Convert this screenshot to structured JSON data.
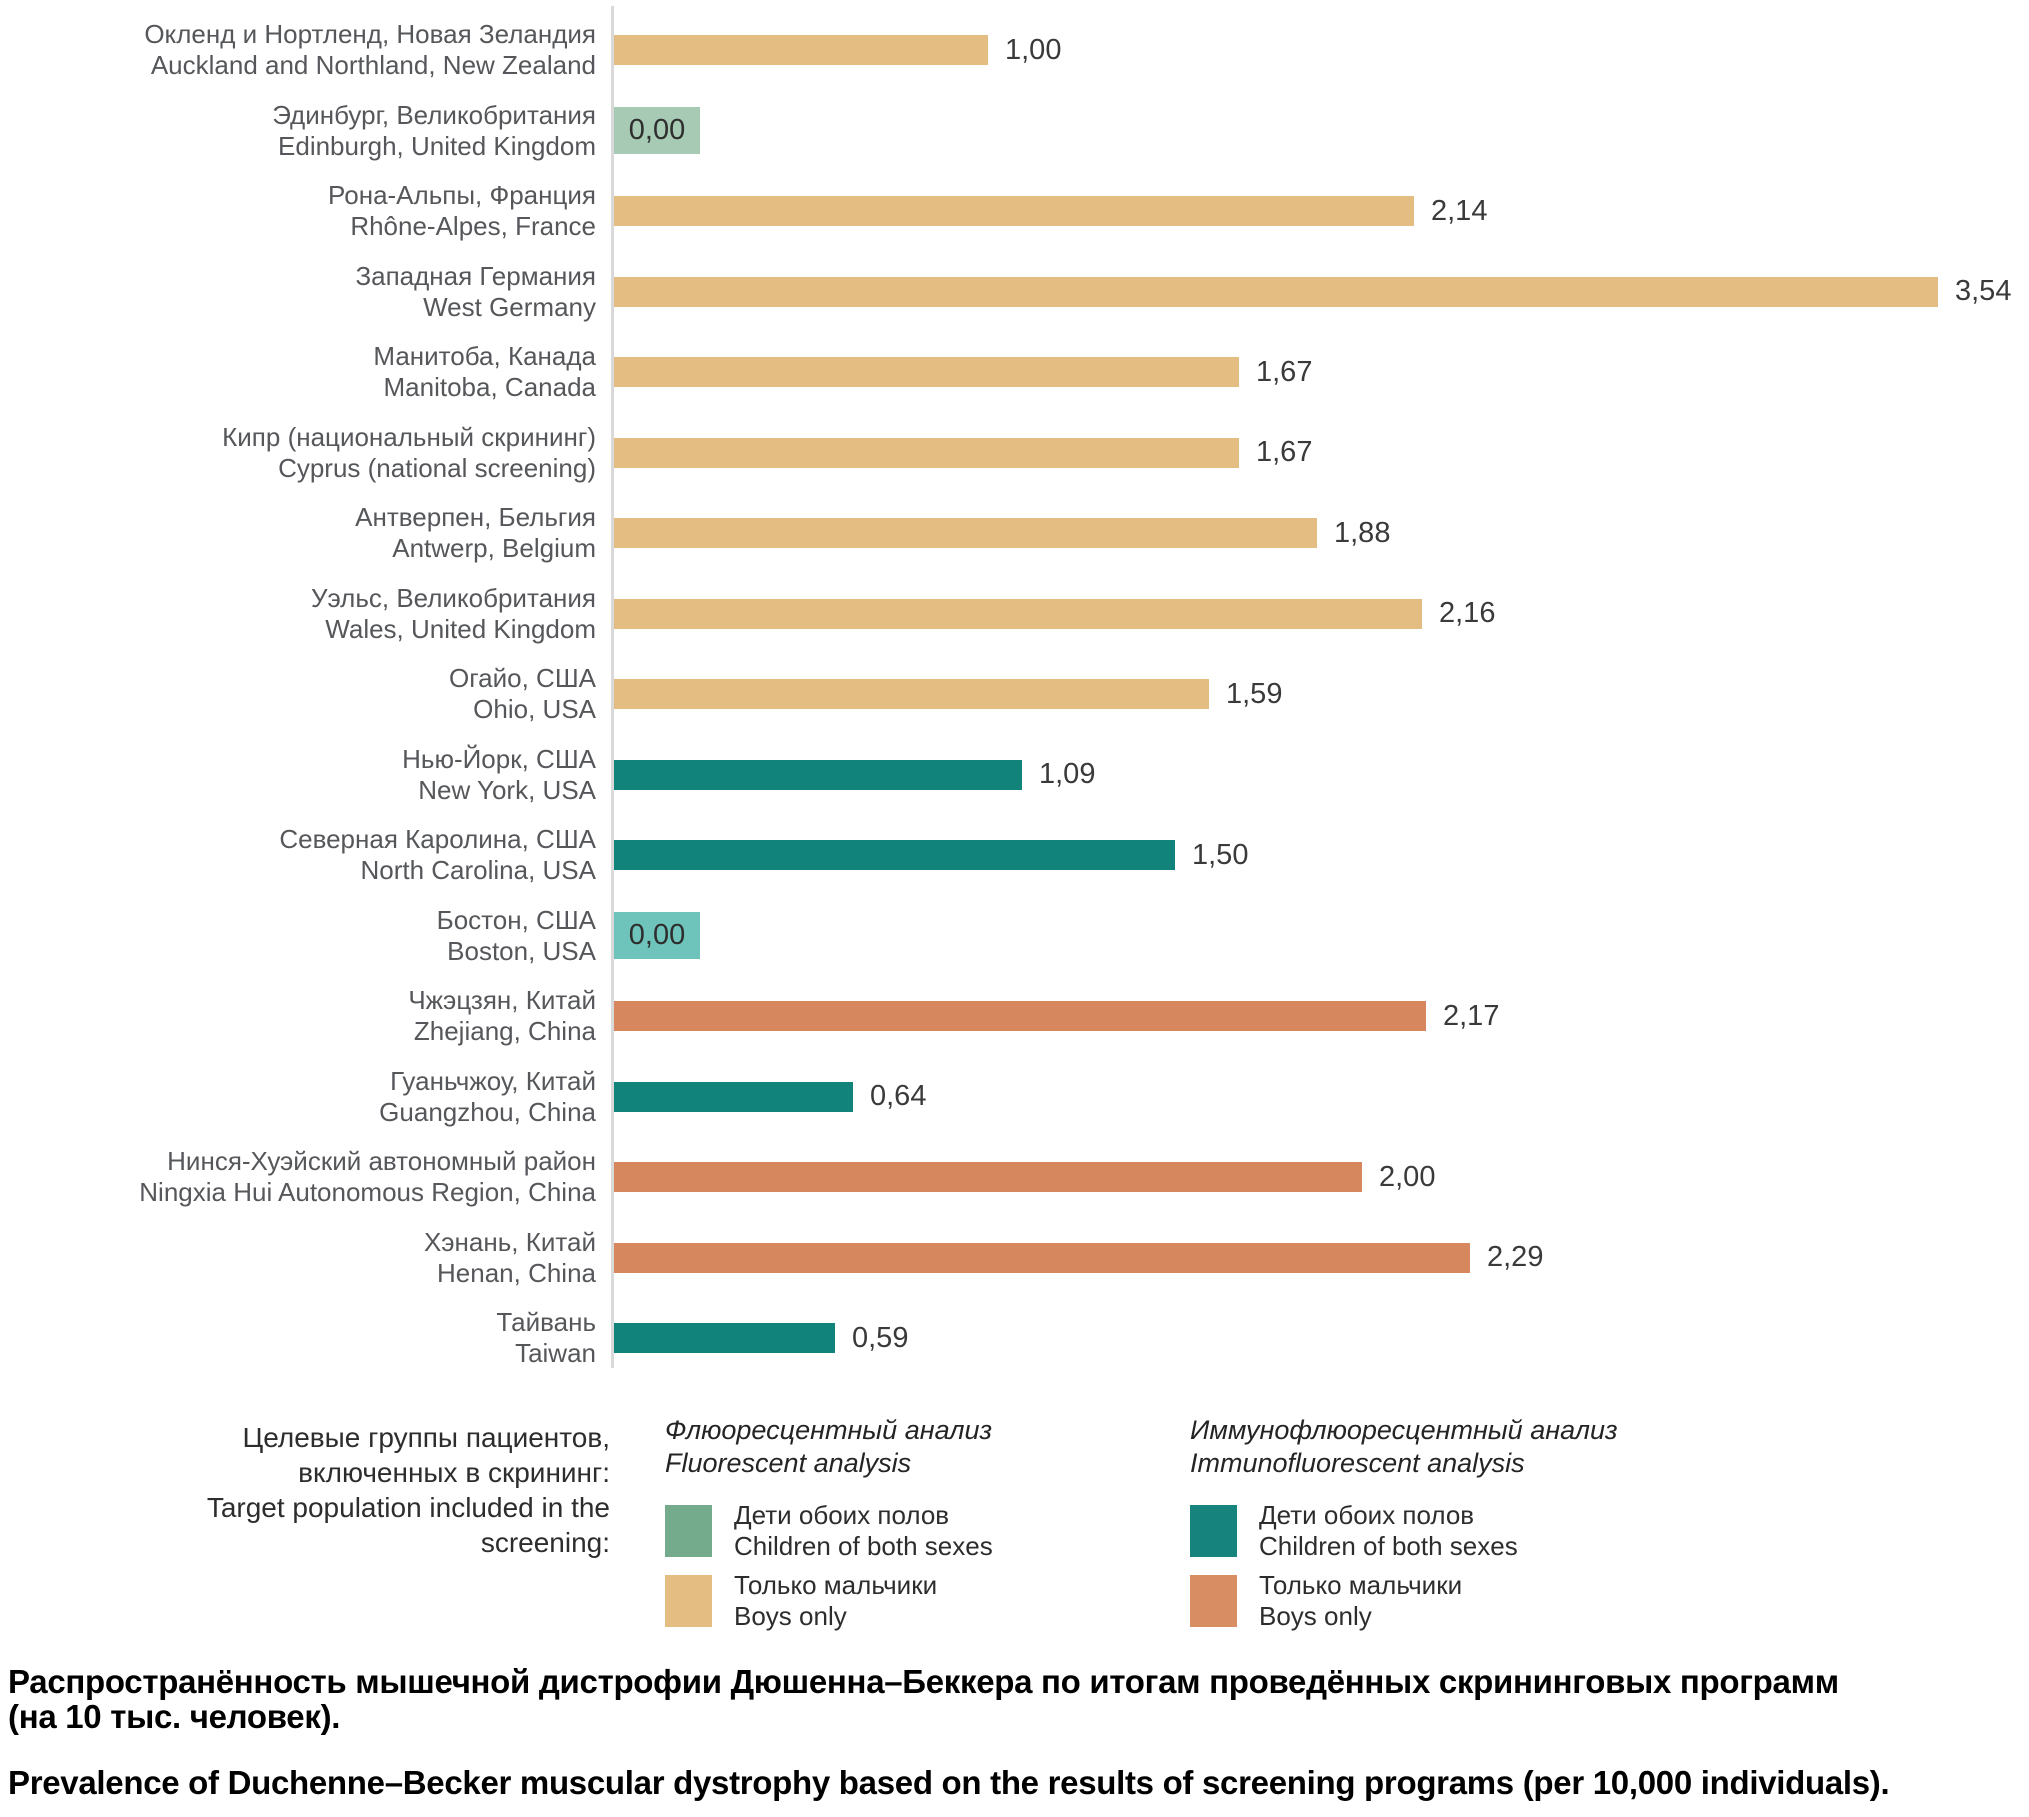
{
  "chart_data": {
    "type": "bar",
    "orientation": "horizontal",
    "xlim": [
      0,
      3.54
    ],
    "grid": false,
    "value_format": "comma-decimal (2 places)",
    "rows": [
      {
        "label_ru": "Окленд и Нортленд, Новая Зеландия",
        "label_en": "Auckland and Northland, New Zealand",
        "value": 1.0,
        "display": "1,00",
        "analysis": "fluorescent",
        "population": "boys-only",
        "color": "#e4bd83",
        "zero": false
      },
      {
        "label_ru": "Эдинбург, Великобритания",
        "label_en": "Edinburgh, United Kingdom",
        "value": 0.0,
        "display": "0,00",
        "analysis": "fluorescent",
        "population": "children-of-both-sexes",
        "color": "#a6cab4",
        "zero": true
      },
      {
        "label_ru": "Рона-Альпы, Франция",
        "label_en": "Rhône-Alpes, France",
        "value": 2.14,
        "display": "2,14",
        "analysis": "fluorescent",
        "population": "boys-only",
        "color": "#e4bd83",
        "zero": false
      },
      {
        "label_ru": "Западная Германия",
        "label_en": "West Germany",
        "value": 3.54,
        "display": "3,54",
        "analysis": "fluorescent",
        "population": "boys-only",
        "color": "#e4bd83",
        "zero": false
      },
      {
        "label_ru": "Манитоба, Канада",
        "label_en": "Manitoba, Canada",
        "value": 1.67,
        "display": "1,67",
        "analysis": "fluorescent",
        "population": "boys-only",
        "color": "#e4bd83",
        "zero": false
      },
      {
        "label_ru": "Кипр (национальный скрининг)",
        "label_en": "Cyprus (national screening)",
        "value": 1.67,
        "display": "1,67",
        "analysis": "fluorescent",
        "population": "boys-only",
        "color": "#e4bd83",
        "zero": false
      },
      {
        "label_ru": "Антверпен, Бельгия",
        "label_en": "Antwerp, Belgium",
        "value": 1.88,
        "display": "1,88",
        "analysis": "fluorescent",
        "population": "boys-only",
        "color": "#e4bd83",
        "zero": false
      },
      {
        "label_ru": "Уэльс, Великобритания",
        "label_en": "Wales, United Kingdom",
        "value": 2.16,
        "display": "2,16",
        "analysis": "fluorescent",
        "population": "boys-only",
        "color": "#e4bd83",
        "zero": false
      },
      {
        "label_ru": "Огайо, США",
        "label_en": "Ohio, USA",
        "value": 1.59,
        "display": "1,59",
        "analysis": "fluorescent",
        "population": "boys-only",
        "color": "#e4bd83",
        "zero": false
      },
      {
        "label_ru": "Нью-Йорк, США",
        "label_en": "New York, USA",
        "value": 1.09,
        "display": "1,09",
        "analysis": "immunofluorescent",
        "population": "children-of-both-sexes",
        "color": "#12837b",
        "zero": false
      },
      {
        "label_ru": "Северная Каролина, США",
        "label_en": "North Carolina, USA",
        "value": 1.5,
        "display": "1,50",
        "analysis": "immunofluorescent",
        "population": "children-of-both-sexes",
        "color": "#12837b",
        "zero": false
      },
      {
        "label_ru": "Бостон, США",
        "label_en": "Boston, USA",
        "value": 0.0,
        "display": "0,00",
        "analysis": "immunofluorescent",
        "population": "children-of-both-sexes",
        "color": "#6ec3ba",
        "zero": true
      },
      {
        "label_ru": "Чжэцзян, Китай",
        "label_en": "Zhejiang, China",
        "value": 2.17,
        "display": "2,17",
        "analysis": "immunofluorescent",
        "population": "boys-only",
        "color": "#d7875e",
        "zero": false
      },
      {
        "label_ru": "Гуаньчжоу, Китай",
        "label_en": "Guangzhou, China",
        "value": 0.64,
        "display": "0,64",
        "analysis": "immunofluorescent",
        "population": "children-of-both-sexes",
        "color": "#12837b",
        "zero": false
      },
      {
        "label_ru": "Нинся-Хуэйский автономный район",
        "label_en": "Ningxia Hui Autonomous Region, China",
        "value": 2.0,
        "display": "2,00",
        "analysis": "immunofluorescent",
        "population": "boys-only",
        "color": "#d7875e",
        "zero": false
      },
      {
        "label_ru": "Хэнань, Китай",
        "label_en": "Henan, China",
        "value": 2.29,
        "display": "2,29",
        "analysis": "immunofluorescent",
        "population": "boys-only",
        "color": "#d7875e",
        "zero": false
      },
      {
        "label_ru": "Тайвань",
        "label_en": "Taiwan",
        "value": 0.59,
        "display": "0,59",
        "analysis": "immunofluorescent",
        "population": "children-of-both-sexes",
        "color": "#12837b",
        "zero": false
      }
    ],
    "legend": {
      "intro_lines": [
        "Целевые группы пациентов,",
        "включенных в скрининг:",
        "Target population included in the",
        "screening:"
      ],
      "groups": [
        {
          "title_ru": "Флюоресцентный анализ",
          "title_en": "Fluorescent analysis",
          "items": [
            {
              "name": "children-of-both-sexes",
              "color": "#74ab8d",
              "label_ru": "Дети обоих полов",
              "label_en": "Children of both sexes"
            },
            {
              "name": "boys-only",
              "color": "#e4bd83",
              "label_ru": "Только мальчики",
              "label_en": "Boys only"
            }
          ]
        },
        {
          "title_ru": "Иммунофлюоресцентный анализ",
          "title_en": "Immunofluorescent analysis",
          "items": [
            {
              "name": "children-of-both-sexes",
              "color": "#17837d",
              "label_ru": "Дети обоих полов",
              "label_en": "Children of both sexes"
            },
            {
              "name": "boys-only",
              "color": "#d88d62",
              "label_ru": "Только мальчики",
              "label_en": "Boys only"
            }
          ]
        }
      ]
    },
    "caption": {
      "ru_lines": [
        "Распространённость мышечной дистрофии Дюшенна–Беккера по итогам проведённых скрининговых программ",
        "(на 10 тыс. человек)."
      ],
      "en": "Prevalence of Duchenne–Becker muscular dystrophy based on the results of screening programs (per 10,000 individuals)."
    }
  }
}
